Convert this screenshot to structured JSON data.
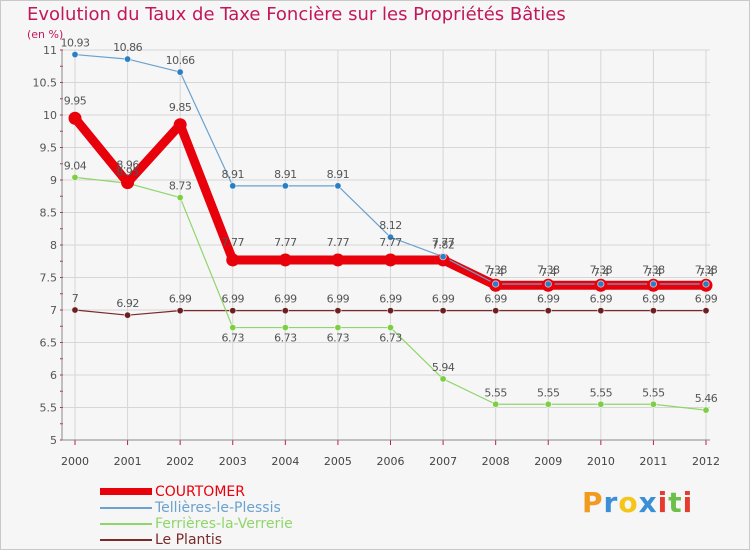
{
  "title": "Evolution du Taux de Taxe Foncière sur les Propriétés Bâties",
  "unit": "(en %)",
  "brand": {
    "letters": [
      "P",
      "r",
      "o",
      "x",
      "i",
      "t",
      "i"
    ],
    "colors": [
      "#f29a1f",
      "#3a8fd6",
      "#f5c518",
      "#3a8fd6",
      "#e63b2e",
      "#6cc04a",
      "#e63b2e"
    ]
  },
  "chart_data": {
    "type": "line",
    "title": "Evolution du Taux de Taxe Foncière sur les Propriétés Bâties",
    "ylabel": "(en %)",
    "xlabel": "",
    "ylim": [
      5,
      11
    ],
    "yticks": [
      "5",
      "5.5",
      "6",
      "6.5",
      "7",
      "7.5",
      "8",
      "8.5",
      "9",
      "9.5",
      "10",
      "10.5",
      "11"
    ],
    "categories": [
      "2000",
      "2001",
      "2002",
      "2003",
      "2004",
      "2005",
      "2006",
      "2007",
      "2008",
      "2009",
      "2010",
      "2011",
      "2012"
    ],
    "series": [
      {
        "name": "COURTOMER",
        "color": "#e8000b",
        "width": 9,
        "markerFill": "#e8000b",
        "values": [
          9.95,
          8.96,
          9.85,
          7.77,
          7.77,
          7.77,
          7.77,
          7.77,
          7.38,
          7.38,
          7.38,
          7.38,
          7.38
        ],
        "labels": [
          "9.95",
          "8.96",
          "9.85",
          "7.77",
          "7.77",
          "7.77",
          "7.77",
          "7.77",
          "7.38",
          "7.38",
          "7.38",
          "7.38",
          "7.38"
        ],
        "labelDy": [
          -14,
          -14,
          -14,
          -14,
          -14,
          -14,
          -14,
          -14,
          -12,
          -12,
          -12,
          -12,
          -12
        ]
      },
      {
        "name": "Tellières-le-Plessis",
        "color": "#6aa2cf",
        "width": 1.2,
        "markerFill": "#2a7fc4",
        "values": [
          10.93,
          10.86,
          10.66,
          8.91,
          8.91,
          8.91,
          8.12,
          7.82,
          7.4,
          7.4,
          7.4,
          7.4,
          7.4
        ],
        "labels": [
          "10.93",
          "10.86",
          "10.66",
          "8.91",
          "8.91",
          "8.91",
          "8.12",
          "7.82",
          "7.4",
          "7.4",
          "7.4",
          "7.4",
          "7.4"
        ],
        "labelDy": [
          -8,
          -8,
          -8,
          -8,
          -8,
          -8,
          -8,
          -8,
          -8,
          -8,
          -8,
          -8,
          -8
        ]
      },
      {
        "name": "Ferrières-la-Verrerie",
        "color": "#8fd66a",
        "width": 1.2,
        "markerFill": "#7ccf45",
        "values": [
          9.04,
          8.95,
          8.73,
          6.73,
          6.73,
          6.73,
          6.73,
          5.94,
          5.55,
          5.55,
          5.55,
          5.55,
          5.46
        ],
        "labels": [
          "9.04",
          "8.95",
          "8.73",
          "6.73",
          "6.73",
          "6.73",
          "6.73",
          "5.94",
          "5.55",
          "5.55",
          "5.55",
          "5.55",
          "5.46"
        ],
        "labelDy": [
          -8,
          -8,
          -8,
          14,
          14,
          14,
          14,
          -8,
          -8,
          -8,
          -8,
          -8,
          -8
        ]
      },
      {
        "name": "Le Plantis",
        "color": "#7a2a2a",
        "width": 1.2,
        "markerFill": "#6b1f1f",
        "values": [
          7.0,
          6.92,
          6.99,
          6.99,
          6.99,
          6.99,
          6.99,
          6.99,
          6.99,
          6.99,
          6.99,
          6.99,
          6.99
        ],
        "labels": [
          "7",
          "6.92",
          "6.99",
          "6.99",
          "6.99",
          "6.99",
          "6.99",
          "6.99",
          "6.99",
          "6.99",
          "6.99",
          "6.99",
          "6.99"
        ],
        "labelDy": [
          -8,
          -8,
          -8,
          -8,
          -8,
          -8,
          -8,
          -8,
          -8,
          -8,
          -8,
          -8,
          -8
        ]
      }
    ]
  }
}
